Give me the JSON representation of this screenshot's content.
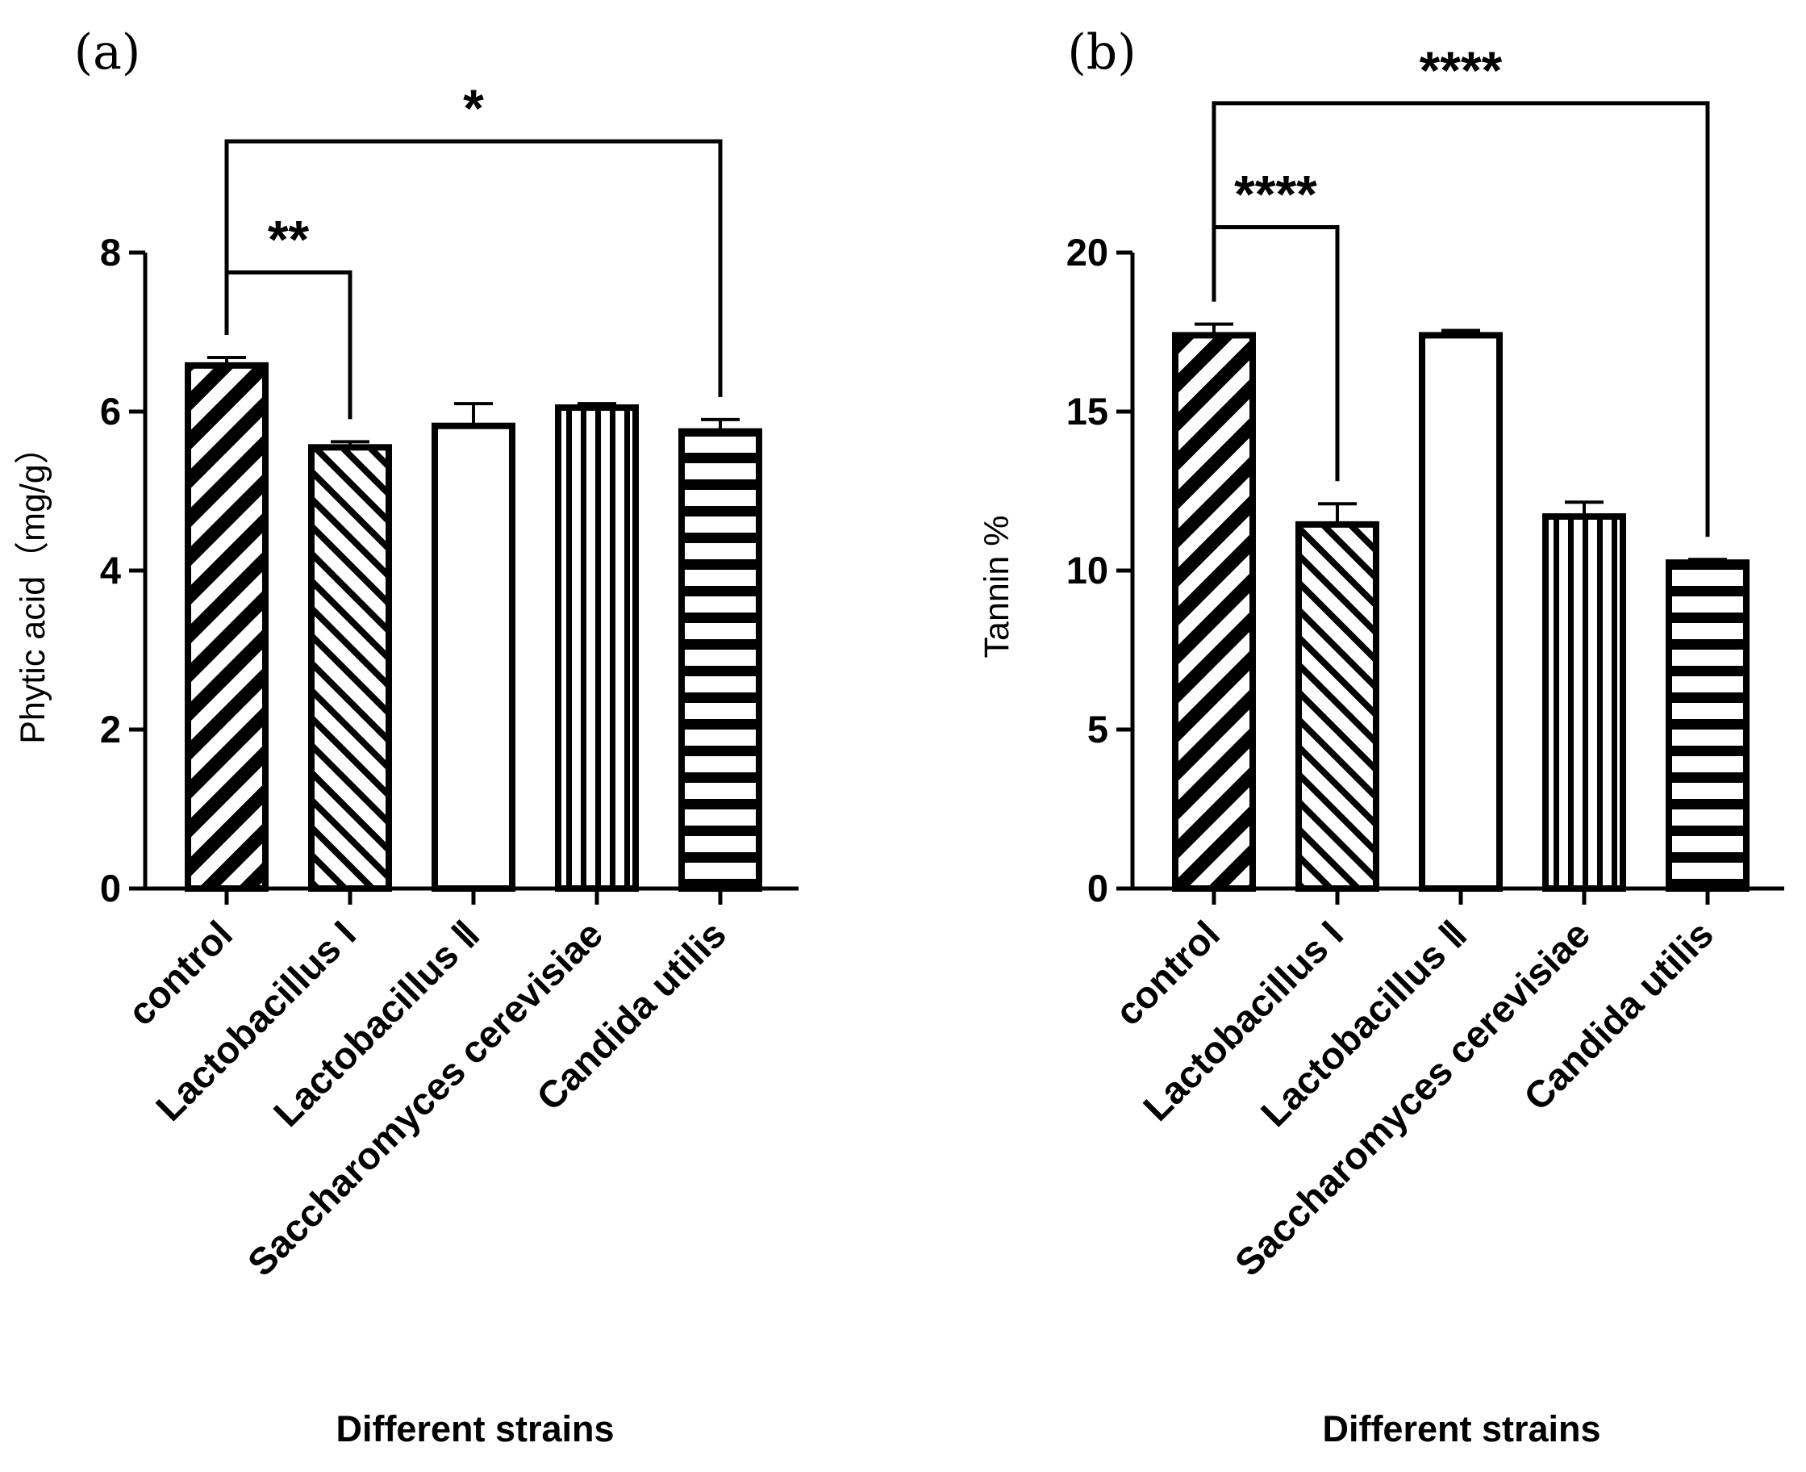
{
  "chart_data": [
    {
      "type": "bar",
      "panel_label": "(a)",
      "categories": [
        "control",
        "Lactobacillus I",
        "Lactobacillus Ⅱ",
        "Saccharomyces cerevisiae",
        "Candida utilis"
      ],
      "values": [
        6.58,
        5.55,
        5.82,
        6.05,
        5.75
      ],
      "errors": [
        0.1,
        0.07,
        0.28,
        0.05,
        0.15
      ],
      "patterns": [
        "diag-down",
        "diag-up",
        "none",
        "vertical",
        "horizontal"
      ],
      "ylabel": "Phytic acid（mg/g）",
      "xlabel": "Different strains",
      "ylim": [
        0,
        8
      ],
      "yticks": [
        0,
        2,
        4,
        6,
        8
      ],
      "significance": [
        {
          "from": 0,
          "to": 1,
          "label": "**",
          "level": 7.75
        },
        {
          "from": 0,
          "to": 4,
          "label": "*",
          "level": 9.4
        }
      ]
    },
    {
      "type": "bar",
      "panel_label": "(b)",
      "categories": [
        "control",
        "Lactobacillus I",
        "Lactobacillus Ⅱ",
        "Saccharomyces cerevisiae",
        "Candida utilis"
      ],
      "values": [
        17.4,
        11.45,
        17.4,
        11.7,
        10.25
      ],
      "errors": [
        0.35,
        0.65,
        0.15,
        0.45,
        0.1
      ],
      "patterns": [
        "diag-down",
        "diag-up",
        "none",
        "vertical",
        "horizontal"
      ],
      "ylabel": "Tannin %",
      "xlabel": "Different strains",
      "ylim": [
        0,
        20
      ],
      "yticks": [
        0,
        5,
        10,
        15,
        20
      ],
      "significance": [
        {
          "from": 0,
          "to": 1,
          "label": "****",
          "level": 20.8
        },
        {
          "from": 0,
          "to": 4,
          "label": "****",
          "level": 24.7
        }
      ]
    }
  ]
}
